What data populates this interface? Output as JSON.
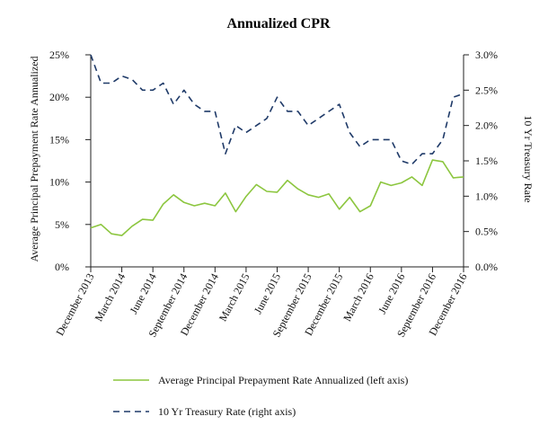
{
  "chart_data": {
    "type": "line",
    "title": "Annualized CPR",
    "ylabel": "Average Principal Prepayment Rate Annualized",
    "y2label": "10 Yr Treasury Rate",
    "ylim": [
      0,
      25
    ],
    "y2lim": [
      0,
      3.0
    ],
    "y_ticks": [
      "0%",
      "5%",
      "10%",
      "15%",
      "20%",
      "25%"
    ],
    "y2_ticks": [
      "0.0%",
      "0.5%",
      "1.0%",
      "1.5%",
      "2.0%",
      "2.5%",
      "3.0%"
    ],
    "x": [
      "December 2013",
      "January 2014",
      "February 2014",
      "March 2014",
      "April 2014",
      "May 2014",
      "June 2014",
      "July 2014",
      "August 2014",
      "September 2014",
      "October 2014",
      "November 2014",
      "December 2014",
      "January 2015",
      "February 2015",
      "March 2015",
      "April 2015",
      "May 2015",
      "June 2015",
      "July 2015",
      "August 2015",
      "September 2015",
      "October 2015",
      "November 2015",
      "December 2015",
      "January 2016",
      "February 2016",
      "March 2016",
      "April 2016",
      "May 2016",
      "June 2016",
      "July 2016",
      "August 2016",
      "September 2016",
      "October 2016",
      "November 2016",
      "December 2016"
    ],
    "x_tick_labels": [
      "December 2013",
      "March 2014",
      "June 2014",
      "September 2014",
      "December 2014",
      "March 2015",
      "June 2015",
      "September 2015",
      "December 2015",
      "March 2016",
      "June 2016",
      "September 2016",
      "December 2016"
    ],
    "series": [
      {
        "name": "Average Principal Prepayment Rate Annualized (left axis)",
        "axis": "left",
        "color": "#8cc63f",
        "style": "solid",
        "values": [
          4.6,
          5.0,
          3.9,
          3.7,
          4.8,
          5.6,
          5.5,
          7.4,
          8.5,
          7.6,
          7.2,
          7.5,
          7.2,
          8.7,
          6.5,
          8.3,
          9.7,
          8.9,
          8.8,
          10.2,
          9.2,
          8.5,
          8.2,
          8.6,
          6.8,
          8.2,
          6.5,
          7.2,
          10.0,
          9.6,
          9.9,
          10.6,
          9.6,
          12.6,
          12.4,
          10.5,
          10.6
        ]
      },
      {
        "name": "10 Yr Treasury Rate (right axis)",
        "axis": "right",
        "color": "#1f3a68",
        "style": "dashed",
        "values": [
          3.0,
          2.6,
          2.6,
          2.7,
          2.65,
          2.5,
          2.5,
          2.6,
          2.3,
          2.5,
          2.3,
          2.2,
          2.2,
          1.6,
          2.0,
          1.9,
          2.0,
          2.1,
          2.4,
          2.2,
          2.2,
          2.0,
          2.1,
          2.2,
          2.3,
          1.9,
          1.7,
          1.8,
          1.8,
          1.8,
          1.5,
          1.45,
          1.6,
          1.6,
          1.8,
          2.4,
          2.45
        ]
      }
    ],
    "legend_position": "bottom",
    "grid": false
  }
}
